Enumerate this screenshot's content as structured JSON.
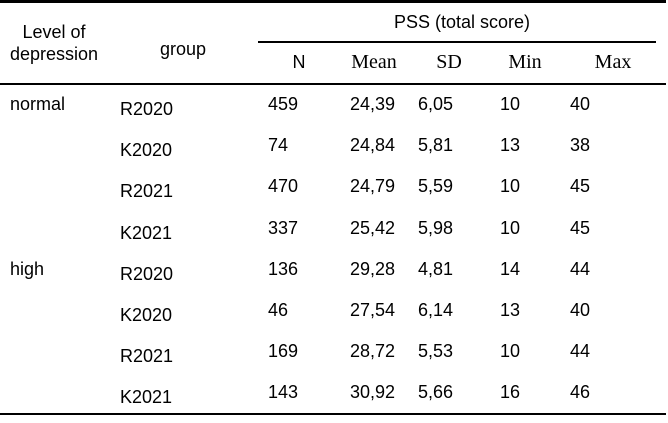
{
  "table": {
    "header": {
      "level_label_line1": "Level of",
      "level_label_line2": "depression",
      "group_label": "group",
      "pss_label": "PSS (total score)",
      "columns": [
        "N",
        "Mean",
        "SD",
        "Min",
        "Max"
      ]
    },
    "rows": [
      {
        "level": "normal",
        "group": "R2020",
        "n": "459",
        "mean": "24,39",
        "sd": "6,05",
        "min": "10",
        "max": "40"
      },
      {
        "level": "",
        "group": "K2020",
        "n": "74",
        "mean": "24,84",
        "sd": "5,81",
        "min": "13",
        "max": "38"
      },
      {
        "level": "",
        "group": "R2021",
        "n": "470",
        "mean": "24,79",
        "sd": "5,59",
        "min": "10",
        "max": "45"
      },
      {
        "level": "",
        "group": "K2021",
        "n": "337",
        "mean": "25,42",
        "sd": "5,98",
        "min": "10",
        "max": "45"
      },
      {
        "level": "high",
        "group": "R2020",
        "n": "136",
        "mean": "29,28",
        "sd": "4,81",
        "min": "14",
        "max": "44"
      },
      {
        "level": "",
        "group": "K2020",
        "n": "46",
        "mean": "27,54",
        "sd": "6,14",
        "min": "13",
        "max": "40"
      },
      {
        "level": "",
        "group": "R2021",
        "n": "169",
        "mean": "28,72",
        "sd": "5,53",
        "min": "10",
        "max": "44"
      },
      {
        "level": "",
        "group": "K2021",
        "n": "143",
        "mean": "30,92",
        "sd": "5,66",
        "min": "16",
        "max": "46"
      }
    ]
  }
}
